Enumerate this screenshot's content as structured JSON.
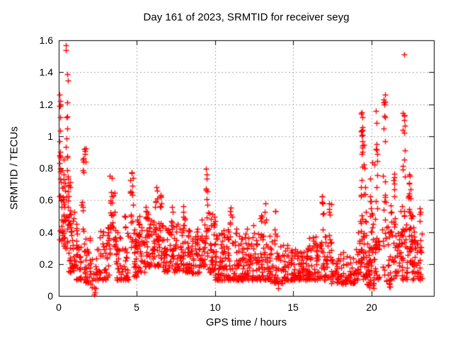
{
  "chart_data": {
    "type": "scatter",
    "title": "Day 161 of 2023, SRMTID for receiver seyg",
    "xlabel": "GPS time / hours",
    "ylabel": "SRMTID / TECUs",
    "xlim": [
      0,
      24
    ],
    "ylim": [
      0,
      1.6
    ],
    "xticks": {
      "values": [
        0,
        5,
        10,
        15,
        20
      ],
      "labels": [
        "0",
        "5",
        "10",
        "15",
        "20"
      ]
    },
    "yticks": {
      "values": [
        0,
        0.2,
        0.4,
        0.6,
        0.8,
        1.0,
        1.2,
        1.4,
        1.6
      ],
      "labels": [
        "0",
        "0.2",
        "0.4",
        "0.6",
        "0.8",
        "1",
        "1.2",
        "1.4",
        "1.6"
      ]
    },
    "grid": {
      "show": true,
      "color": "#a8a8a8",
      "style": "dashed"
    },
    "marker": {
      "shape": "plus",
      "color": "#ff0000",
      "size": 9
    },
    "colors": {
      "border": "#000000",
      "text": "#000000",
      "background": "#ffffff"
    },
    "legend": "none",
    "seed": 161,
    "cluster_format": [
      "hour_start",
      "hour_end",
      "count",
      "value_min",
      "value_max",
      "low_bias_exponent"
    ],
    "clusters": [
      [
        0.02,
        0.12,
        10,
        0.75,
        1.28,
        1.0
      ],
      [
        0.05,
        0.35,
        28,
        0.35,
        0.8,
        1.5
      ],
      [
        0.3,
        0.6,
        30,
        0.3,
        0.95,
        1.4
      ],
      [
        0.42,
        0.55,
        5,
        0.95,
        1.22,
        1.0
      ],
      [
        0.55,
        0.75,
        8,
        0.55,
        0.8,
        1.0
      ],
      [
        0.6,
        1.0,
        38,
        0.15,
        0.55,
        1.7
      ],
      [
        1.0,
        1.45,
        35,
        0.1,
        0.45,
        1.8
      ],
      [
        1.45,
        1.6,
        10,
        0.4,
        0.92,
        1.0
      ],
      [
        1.55,
        1.75,
        4,
        0.78,
        0.93,
        1.0
      ],
      [
        1.6,
        2.0,
        30,
        0.08,
        0.38,
        1.8
      ],
      [
        2.0,
        2.4,
        16,
        0.05,
        0.3,
        1.7
      ],
      [
        2.4,
        3.0,
        30,
        0.1,
        0.42,
        1.8
      ],
      [
        3.0,
        3.3,
        20,
        0.12,
        0.48,
        1.6
      ],
      [
        3.25,
        3.45,
        14,
        0.4,
        0.78,
        1.0
      ],
      [
        3.45,
        3.65,
        12,
        0.3,
        0.65,
        1.2
      ],
      [
        3.65,
        4.0,
        26,
        0.1,
        0.42,
        1.8
      ],
      [
        4.0,
        4.45,
        26,
        0.1,
        0.4,
        1.8
      ],
      [
        4.2,
        4.32,
        5,
        0.4,
        0.56,
        1.0
      ],
      [
        4.55,
        4.78,
        18,
        0.28,
        0.78,
        1.1
      ],
      [
        4.78,
        5.0,
        24,
        0.12,
        0.42,
        1.8
      ],
      [
        5.0,
        5.5,
        36,
        0.15,
        0.5,
        1.7
      ],
      [
        5.5,
        5.85,
        26,
        0.18,
        0.55,
        1.5
      ],
      [
        5.55,
        5.68,
        6,
        0.45,
        0.63,
        1.0
      ],
      [
        5.85,
        6.15,
        22,
        0.18,
        0.5,
        1.5
      ],
      [
        6.15,
        6.3,
        10,
        0.35,
        0.73,
        1.0
      ],
      [
        6.3,
        6.7,
        30,
        0.18,
        0.5,
        1.6
      ],
      [
        6.45,
        6.58,
        6,
        0.5,
        0.68,
        1.0
      ],
      [
        6.7,
        7.0,
        24,
        0.15,
        0.45,
        1.6
      ],
      [
        7.0,
        7.5,
        34,
        0.15,
        0.47,
        1.6
      ],
      [
        7.18,
        7.3,
        4,
        0.45,
        0.58,
        1.0
      ],
      [
        7.5,
        8.0,
        34,
        0.15,
        0.45,
        1.6
      ],
      [
        7.95,
        8.08,
        5,
        0.45,
        0.65,
        1.0
      ],
      [
        8.0,
        8.5,
        34,
        0.15,
        0.45,
        1.7
      ],
      [
        8.5,
        9.0,
        34,
        0.14,
        0.42,
        1.7
      ],
      [
        9.0,
        9.35,
        24,
        0.18,
        0.5,
        1.5
      ],
      [
        9.4,
        9.52,
        8,
        0.52,
        0.84,
        0.9
      ],
      [
        9.35,
        9.55,
        10,
        0.25,
        0.5,
        1.2
      ],
      [
        9.55,
        10.0,
        34,
        0.15,
        0.56,
        1.7
      ],
      [
        10.0,
        10.5,
        40,
        0.1,
        0.4,
        1.8
      ],
      [
        10.5,
        11.0,
        40,
        0.1,
        0.42,
        1.8
      ],
      [
        10.95,
        11.1,
        6,
        0.42,
        0.56,
        1.0
      ],
      [
        11.1,
        11.6,
        36,
        0.1,
        0.45,
        1.8
      ],
      [
        11.6,
        12.0,
        34,
        0.1,
        0.4,
        1.8
      ],
      [
        12.0,
        12.5,
        36,
        0.1,
        0.45,
        1.8
      ],
      [
        12.5,
        13.0,
        34,
        0.1,
        0.42,
        1.8
      ],
      [
        12.88,
        13.0,
        4,
        0.45,
        0.6,
        1.0
      ],
      [
        13.0,
        13.5,
        34,
        0.1,
        0.42,
        1.8
      ],
      [
        13.18,
        13.3,
        4,
        0.42,
        0.62,
        1.0
      ],
      [
        13.5,
        14.0,
        30,
        0.08,
        0.38,
        1.8
      ],
      [
        13.75,
        13.88,
        4,
        0.38,
        0.55,
        1.0
      ],
      [
        14.0,
        14.5,
        28,
        0.08,
        0.32,
        1.8
      ],
      [
        14.5,
        15.0,
        28,
        0.1,
        0.32,
        1.8
      ],
      [
        15.0,
        15.5,
        34,
        0.1,
        0.3,
        1.6
      ],
      [
        15.5,
        16.0,
        34,
        0.1,
        0.32,
        1.6
      ],
      [
        16.0,
        16.5,
        34,
        0.1,
        0.38,
        1.7
      ],
      [
        16.5,
        17.0,
        28,
        0.1,
        0.4,
        1.7
      ],
      [
        16.8,
        16.95,
        8,
        0.4,
        0.65,
        1.0
      ],
      [
        17.0,
        17.45,
        26,
        0.1,
        0.38,
        1.7
      ],
      [
        17.3,
        17.42,
        6,
        0.38,
        0.6,
        1.0
      ],
      [
        17.45,
        18.0,
        28,
        0.08,
        0.3,
        1.8
      ],
      [
        18.0,
        18.5,
        24,
        0.06,
        0.28,
        1.8
      ],
      [
        18.5,
        19.0,
        24,
        0.08,
        0.3,
        1.8
      ],
      [
        19.0,
        19.28,
        20,
        0.1,
        0.4,
        1.6
      ],
      [
        19.3,
        19.45,
        18,
        0.5,
        1.15,
        0.8
      ],
      [
        19.3,
        19.45,
        12,
        0.15,
        0.5,
        1.2
      ],
      [
        19.45,
        19.7,
        24,
        0.1,
        0.55,
        1.6
      ],
      [
        19.5,
        19.62,
        6,
        0.6,
        0.95,
        1.0
      ],
      [
        19.7,
        20.2,
        44,
        0.05,
        0.5,
        1.8
      ],
      [
        19.9,
        20.1,
        8,
        0.5,
        0.85,
        1.0
      ],
      [
        20.2,
        20.45,
        15,
        0.3,
        1.2,
        0.9
      ],
      [
        20.2,
        20.5,
        20,
        0.1,
        0.35,
        1.5
      ],
      [
        20.7,
        20.95,
        18,
        0.1,
        0.8,
        1.3
      ],
      [
        20.75,
        20.9,
        8,
        0.9,
        1.26,
        1.0
      ],
      [
        20.95,
        21.2,
        20,
        0.05,
        0.45,
        1.6
      ],
      [
        21.2,
        21.55,
        24,
        0.1,
        0.6,
        1.5
      ],
      [
        21.4,
        21.5,
        6,
        0.6,
        0.78,
        1.0
      ],
      [
        21.55,
        21.9,
        24,
        0.1,
        0.55,
        1.5
      ],
      [
        21.95,
        22.15,
        14,
        0.3,
        1.0,
        1.0
      ],
      [
        22.0,
        22.15,
        5,
        1.0,
        1.15,
        1.0
      ],
      [
        21.9,
        22.3,
        24,
        0.1,
        0.45,
        1.6
      ],
      [
        22.3,
        22.6,
        28,
        0.2,
        0.65,
        1.4
      ],
      [
        22.4,
        22.5,
        5,
        0.65,
        0.8,
        1.0
      ],
      [
        22.6,
        22.9,
        24,
        0.1,
        0.55,
        1.5
      ],
      [
        22.9,
        23.25,
        24,
        0.1,
        0.45,
        1.5
      ],
      [
        23.08,
        23.2,
        4,
        0.45,
        0.6,
        1.0
      ]
    ],
    "outliers": [
      [
        0.45,
        1.57
      ],
      [
        0.47,
        1.54
      ],
      [
        0.55,
        1.39
      ],
      [
        0.57,
        1.35
      ],
      [
        0.03,
        1.26
      ],
      [
        0.04,
        1.19
      ],
      [
        0.06,
        0.97
      ],
      [
        1.62,
        0.92
      ],
      [
        1.68,
        0.89
      ],
      [
        2.28,
        0.01
      ],
      [
        2.33,
        0.02
      ],
      [
        14.05,
        0.05
      ],
      [
        19.38,
        1.15
      ],
      [
        19.42,
        1.12
      ],
      [
        20.78,
        1.23
      ],
      [
        22.1,
        1.51
      ],
      [
        22.12,
        1.13
      ],
      [
        22.08,
        1.1
      ]
    ]
  }
}
